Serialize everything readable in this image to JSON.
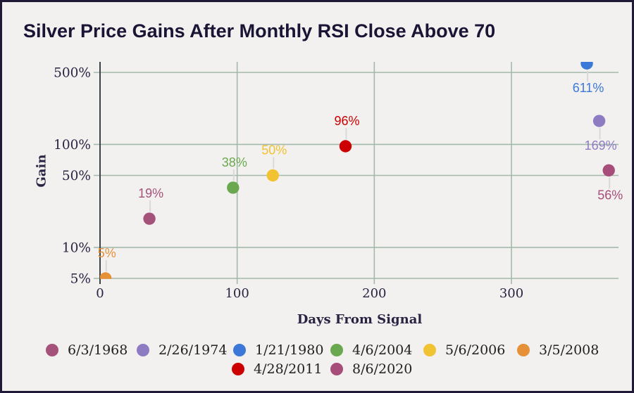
{
  "chart_data": {
    "type": "scatter",
    "title": "Silver Price Gains After Monthly RSI Close Above 70",
    "xlabel": "Days From Signal",
    "ylabel": "Gain",
    "x_scale": "linear",
    "y_scale": "log",
    "xlim": [
      0,
      380
    ],
    "ylim_pct": [
      5,
      633
    ],
    "grid": true,
    "legend_position": "bottom",
    "x_ticks": [
      {
        "value": 0,
        "label": "0"
      },
      {
        "value": 100,
        "label": "100"
      },
      {
        "value": 200,
        "label": "200"
      },
      {
        "value": 300,
        "label": "300"
      }
    ],
    "y_ticks": [
      {
        "value": 5,
        "label": "5%"
      },
      {
        "value": 10,
        "label": "10%"
      },
      {
        "value": 50,
        "label": "50%"
      },
      {
        "value": 100,
        "label": "100%"
      },
      {
        "value": 500,
        "label": "500%"
      }
    ],
    "series": [
      {
        "name": "6/3/1968",
        "color": "#a5527a",
        "days": 36,
        "gain_pct": 19,
        "label": "19%",
        "label_side": "above"
      },
      {
        "name": "2/26/1974",
        "color": "#8e7cc3",
        "days": 364,
        "gain_pct": 169,
        "label": "169%",
        "label_side": "below"
      },
      {
        "name": "1/21/1980",
        "color": "#3c78d8",
        "days": 355,
        "gain_pct": 611,
        "label": "611%",
        "label_side": "below"
      },
      {
        "name": "4/6/2004",
        "color": "#6aa84f",
        "days": 97,
        "gain_pct": 38,
        "label": "38%",
        "label_side": "above"
      },
      {
        "name": "5/6/2006",
        "color": "#f1c232",
        "days": 126,
        "gain_pct": 50,
        "label": "50%",
        "label_side": "above"
      },
      {
        "name": "3/5/2008",
        "color": "#e69138",
        "days": 4,
        "gain_pct": 5,
        "label": "5%",
        "label_side": "above"
      },
      {
        "name": "4/28/2011",
        "color": "#cc0000",
        "days": 179,
        "gain_pct": 96,
        "label": "96%",
        "label_side": "above"
      },
      {
        "name": "8/6/2020",
        "color": "#a64d79",
        "days": 371,
        "gain_pct": 56,
        "label": "56%",
        "label_side": "below"
      }
    ],
    "legend": {
      "rows": [
        [
          "6/3/1968",
          "2/26/1974",
          "1/21/1980",
          "4/6/2004",
          "5/6/2006",
          "3/5/2008"
        ],
        [
          "4/28/2011",
          "8/6/2020"
        ]
      ]
    }
  },
  "colors": {
    "background": "#f2f1ef",
    "border": "#201a38",
    "title_text": "#1b1535",
    "axis_text": "#2a2443",
    "gridline": "#a3b9ab",
    "axis_line": "#3c4346",
    "connector": "#d9d9d9",
    "legend_text": "#212121"
  }
}
